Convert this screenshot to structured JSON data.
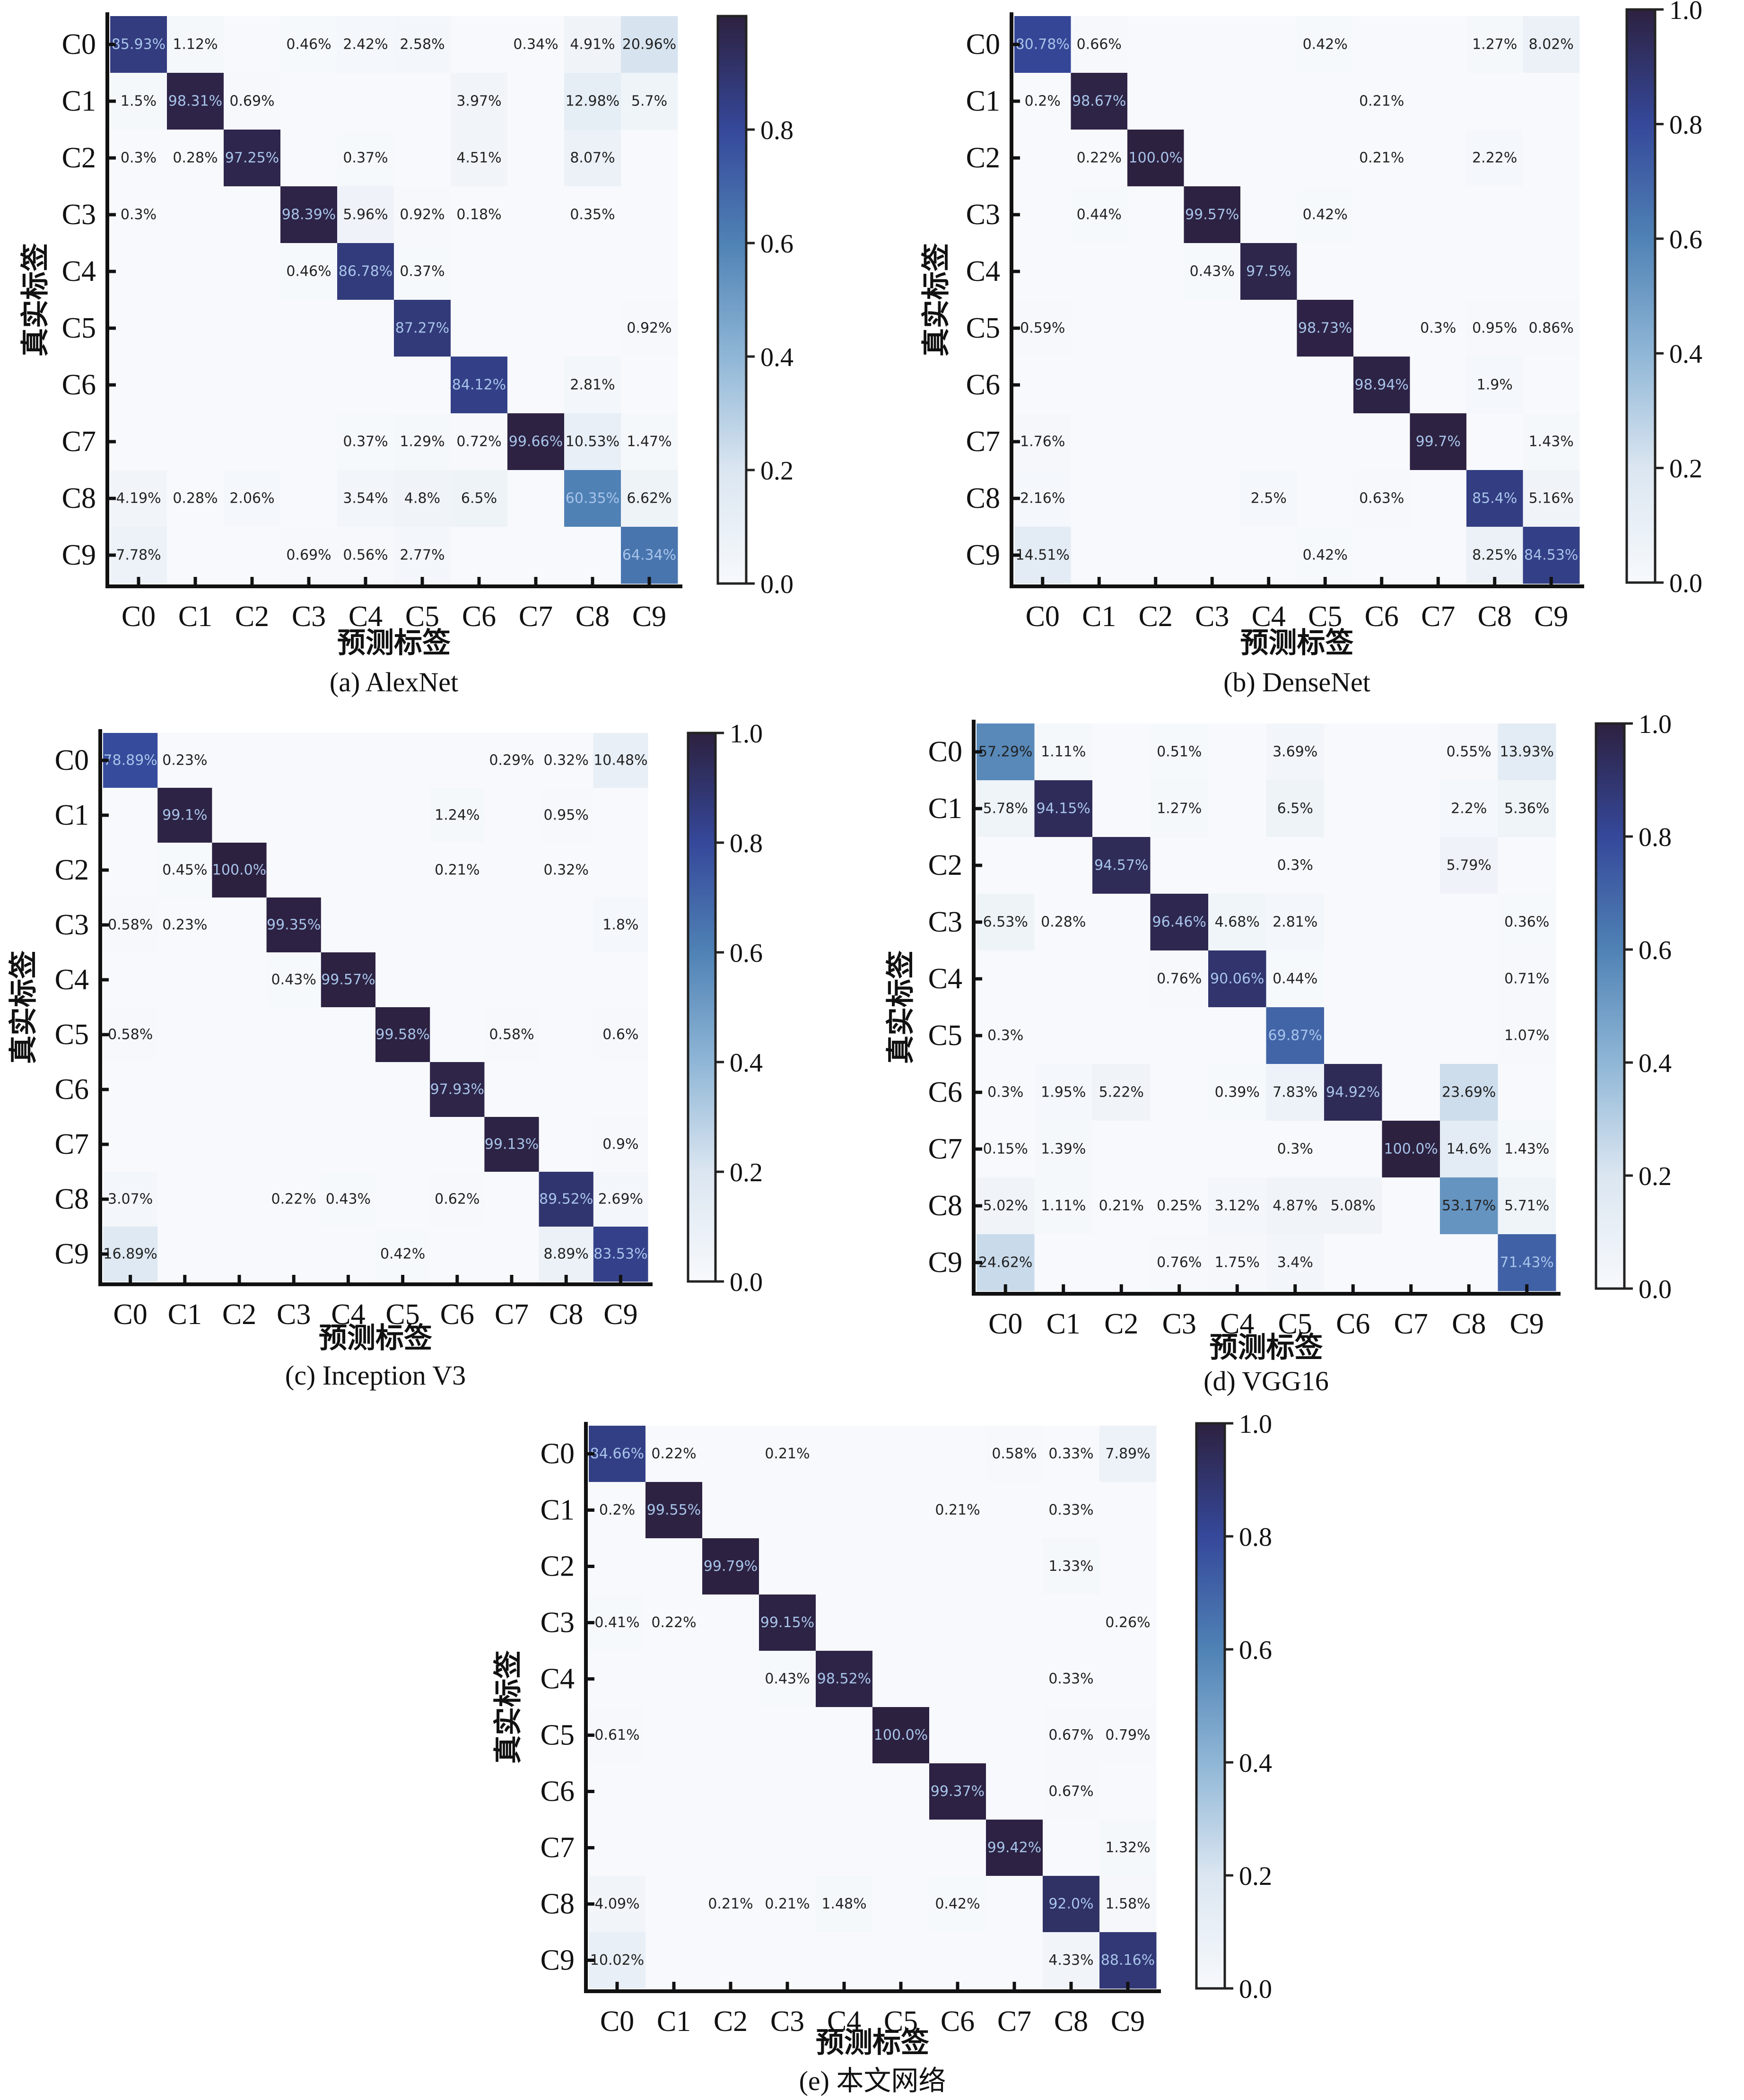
{
  "figure": {
    "xlabel": "预测标签",
    "ylabel": "真实标签",
    "colormap": {
      "low": "#f7f9fc",
      "mid1": "#c6d8ea",
      "mid2": "#5b8fbe",
      "mid3": "#3a56a0",
      "high": "#2d2140"
    }
  },
  "chart_data": [
    {
      "type": "heatmap",
      "title": "(a) AlexNet",
      "xlabel": "预测标签",
      "ylabel": "真实标签",
      "categories": [
        "C0",
        "C1",
        "C2",
        "C3",
        "C4",
        "C5",
        "C6",
        "C7",
        "C8",
        "C9"
      ],
      "colorbar_ticks": [
        "0.0",
        "0.2",
        "0.4",
        "0.6",
        "0.8"
      ],
      "colorbar_range": [
        0,
        1
      ],
      "cells": [
        [
          "85.93%",
          "1.12%",
          "",
          "0.46%",
          "2.42%",
          "2.58%",
          "",
          "0.34%",
          "4.91%",
          "20.96%"
        ],
        [
          "1.5%",
          "98.31%",
          "0.69%",
          "",
          "",
          "",
          "3.97%",
          "",
          "12.98%",
          "5.7%"
        ],
        [
          "0.3%",
          "0.28%",
          "97.25%",
          "",
          "0.37%",
          "",
          "4.51%",
          "",
          "8.07%",
          ""
        ],
        [
          "0.3%",
          "",
          "",
          "98.39%",
          "5.96%",
          "0.92%",
          "0.18%",
          "",
          "0.35%",
          ""
        ],
        [
          "",
          "",
          "",
          "0.46%",
          "86.78%",
          "0.37%",
          "",
          "",
          "",
          ""
        ],
        [
          "",
          "",
          "",
          "",
          "",
          "87.27%",
          "",
          "",
          "",
          "0.92%"
        ],
        [
          "",
          "",
          "",
          "",
          "",
          "",
          "84.12%",
          "",
          "2.81%",
          ""
        ],
        [
          "",
          "",
          "",
          "",
          "0.37%",
          "1.29%",
          "0.72%",
          "99.66%",
          "10.53%",
          "1.47%"
        ],
        [
          "4.19%",
          "0.28%",
          "2.06%",
          "",
          "3.54%",
          "4.8%",
          "6.5%",
          "",
          "60.35%",
          "6.62%"
        ],
        [
          "7.78%",
          "",
          "",
          "0.69%",
          "0.56%",
          "2.77%",
          "",
          "",
          "",
          "64.34%"
        ]
      ]
    },
    {
      "type": "heatmap",
      "title": "(b) DenseNet",
      "xlabel": "预测标签",
      "ylabel": "真实标签",
      "categories": [
        "C0",
        "C1",
        "C2",
        "C3",
        "C4",
        "C5",
        "C6",
        "C7",
        "C8",
        "C9"
      ],
      "colorbar_ticks": [
        "0.0",
        "0.2",
        "0.4",
        "0.6",
        "0.8",
        "1.0"
      ],
      "colorbar_range": [
        0,
        1
      ],
      "cells": [
        [
          "80.78%",
          "0.66%",
          "",
          "",
          "",
          "0.42%",
          "",
          "",
          "1.27%",
          "8.02%"
        ],
        [
          "0.2%",
          "98.67%",
          "",
          "",
          "",
          "",
          "0.21%",
          "",
          "",
          ""
        ],
        [
          "",
          "0.22%",
          "100.0%",
          "",
          "",
          "",
          "0.21%",
          "",
          "2.22%",
          ""
        ],
        [
          "",
          "0.44%",
          "",
          "99.57%",
          "",
          "0.42%",
          "",
          "",
          "",
          ""
        ],
        [
          "",
          "",
          "",
          "0.43%",
          "97.5%",
          "",
          "",
          "",
          "",
          ""
        ],
        [
          "0.59%",
          "",
          "",
          "",
          "",
          "98.73%",
          "",
          "0.3%",
          "0.95%",
          "0.86%"
        ],
        [
          "",
          "",
          "",
          "",
          "",
          "",
          "98.94%",
          "",
          "1.9%",
          ""
        ],
        [
          "1.76%",
          "",
          "",
          "",
          "",
          "",
          "",
          "99.7%",
          "",
          "1.43%"
        ],
        [
          "2.16%",
          "",
          "",
          "",
          "2.5%",
          "",
          "0.63%",
          "",
          "85.4%",
          "5.16%"
        ],
        [
          "14.51%",
          "",
          "",
          "",
          "",
          "0.42%",
          "",
          "",
          "8.25%",
          "84.53%"
        ]
      ]
    },
    {
      "type": "heatmap",
      "title": "(c) Inception V3",
      "xlabel": "预测标签",
      "ylabel": "真实标签",
      "categories": [
        "C0",
        "C1",
        "C2",
        "C3",
        "C4",
        "C5",
        "C6",
        "C7",
        "C8",
        "C9"
      ],
      "colorbar_ticks": [
        "0.0",
        "0.2",
        "0.4",
        "0.6",
        "0.8",
        "1.0"
      ],
      "colorbar_range": [
        0,
        1
      ],
      "cells": [
        [
          "78.89%",
          "0.23%",
          "",
          "",
          "",
          "",
          "",
          "0.29%",
          "0.32%",
          "10.48%"
        ],
        [
          "",
          "99.1%",
          "",
          "",
          "",
          "",
          "1.24%",
          "",
          "0.95%",
          ""
        ],
        [
          "",
          "0.45%",
          "100.0%",
          "",
          "",
          "",
          "0.21%",
          "",
          "0.32%",
          ""
        ],
        [
          "0.58%",
          "0.23%",
          "",
          "99.35%",
          "",
          "",
          "",
          "",
          "",
          "1.8%"
        ],
        [
          "",
          "",
          "",
          "0.43%",
          "99.57%",
          "",
          "",
          "",
          "",
          ""
        ],
        [
          "0.58%",
          "",
          "",
          "",
          "",
          "99.58%",
          "",
          "0.58%",
          "",
          "0.6%"
        ],
        [
          "",
          "",
          "",
          "",
          "",
          "",
          "97.93%",
          "",
          "",
          ""
        ],
        [
          "",
          "",
          "",
          "",
          "",
          "",
          "",
          "99.13%",
          "",
          "0.9%"
        ],
        [
          "3.07%",
          "",
          "",
          "0.22%",
          "0.43%",
          "",
          "0.62%",
          "",
          "89.52%",
          "2.69%"
        ],
        [
          "16.89%",
          "",
          "",
          "",
          "",
          "0.42%",
          "",
          "",
          "8.89%",
          "83.53%"
        ]
      ]
    },
    {
      "type": "heatmap",
      "title": "(d) VGG16",
      "xlabel": "预测标签",
      "ylabel": "真实标签",
      "categories": [
        "C0",
        "C1",
        "C2",
        "C3",
        "C4",
        "C5",
        "C6",
        "C7",
        "C8",
        "C9"
      ],
      "colorbar_ticks": [
        "0.0",
        "0.2",
        "0.4",
        "0.6",
        "0.8",
        "1.0"
      ],
      "colorbar_range": [
        0,
        1
      ],
      "cells": [
        [
          "57.29%",
          "1.11%",
          "",
          "0.51%",
          "",
          "3.69%",
          "",
          "",
          "0.55%",
          "13.93%"
        ],
        [
          "5.78%",
          "94.15%",
          "",
          "1.27%",
          "",
          "6.5%",
          "",
          "",
          "2.2%",
          "5.36%"
        ],
        [
          "",
          "",
          "94.57%",
          "",
          "",
          "0.3%",
          "",
          "",
          "5.79%",
          ""
        ],
        [
          "6.53%",
          "0.28%",
          "",
          "96.46%",
          "4.68%",
          "2.81%",
          "",
          "",
          "",
          "0.36%"
        ],
        [
          "",
          "",
          "",
          "0.76%",
          "90.06%",
          "0.44%",
          "",
          "",
          "",
          "0.71%"
        ],
        [
          "0.3%",
          "",
          "",
          "",
          "",
          "69.87%",
          "",
          "",
          "",
          "1.07%"
        ],
        [
          "0.3%",
          "1.95%",
          "5.22%",
          "",
          "0.39%",
          "7.83%",
          "94.92%",
          "",
          "23.69%",
          ""
        ],
        [
          "0.15%",
          "1.39%",
          "",
          "",
          "",
          "0.3%",
          "",
          "100.0%",
          "14.6%",
          "1.43%"
        ],
        [
          "5.02%",
          "1.11%",
          "0.21%",
          "0.25%",
          "3.12%",
          "4.87%",
          "5.08%",
          "",
          "53.17%",
          "5.71%"
        ],
        [
          "24.62%",
          "",
          "",
          "0.76%",
          "1.75%",
          "3.4%",
          "",
          "",
          "",
          "71.43%"
        ]
      ]
    },
    {
      "type": "heatmap",
      "title": "(e) 本文网络",
      "xlabel": "预测标签",
      "ylabel": "真实标签",
      "categories": [
        "C0",
        "C1",
        "C2",
        "C3",
        "C4",
        "C5",
        "C6",
        "C7",
        "C8",
        "C9"
      ],
      "colorbar_ticks": [
        "0.0",
        "0.2",
        "0.4",
        "0.6",
        "0.8",
        "1.0"
      ],
      "colorbar_range": [
        0,
        1
      ],
      "cells": [
        [
          "84.66%",
          "0.22%",
          "",
          "0.21%",
          "",
          "",
          "",
          "0.58%",
          "0.33%",
          "7.89%"
        ],
        [
          "0.2%",
          "99.55%",
          "",
          "",
          "",
          "",
          "0.21%",
          "",
          "0.33%",
          ""
        ],
        [
          "",
          "",
          "99.79%",
          "",
          "",
          "",
          "",
          "",
          "1.33%",
          ""
        ],
        [
          "0.41%",
          "0.22%",
          "",
          "99.15%",
          "",
          "",
          "",
          "",
          "",
          "0.26%"
        ],
        [
          "",
          "",
          "",
          "0.43%",
          "98.52%",
          "",
          "",
          "",
          "0.33%",
          ""
        ],
        [
          "0.61%",
          "",
          "",
          "",
          "",
          "100.0%",
          "",
          "",
          "0.67%",
          "0.79%"
        ],
        [
          "",
          "",
          "",
          "",
          "",
          "",
          "99.37%",
          "",
          "0.67%",
          ""
        ],
        [
          "",
          "",
          "",
          "",
          "",
          "",
          "",
          "99.42%",
          "",
          "1.32%"
        ],
        [
          "4.09%",
          "",
          "0.21%",
          "0.21%",
          "1.48%",
          "",
          "0.42%",
          "",
          "92.0%",
          "1.58%"
        ],
        [
          "10.02%",
          "",
          "",
          "",
          "",
          "",
          "",
          "",
          "4.33%",
          "88.16%"
        ]
      ]
    }
  ]
}
